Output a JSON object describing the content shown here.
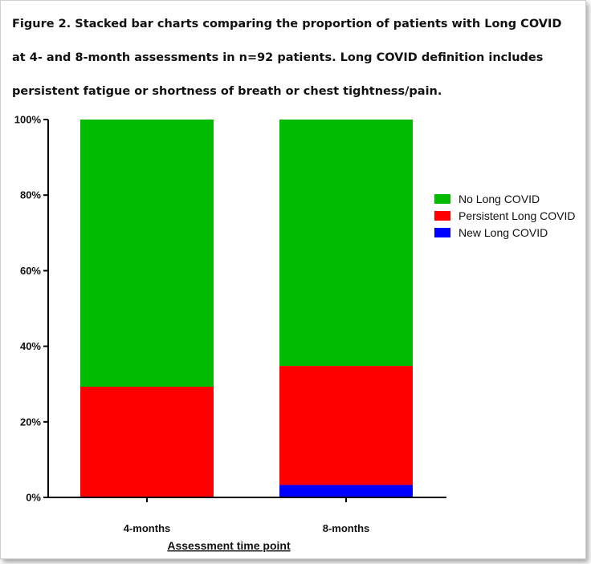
{
  "figure": {
    "caption": "Figure 2. Stacked bar charts comparing the proportion of patients with Long COVID at 4- and 8-month assessments in n=92 patients. Long COVID definition includes persistent fatigue or shortness of breath or chest tightness/pain."
  },
  "chart_data": {
    "type": "bar",
    "stacked": true,
    "categories": [
      "4-months",
      "8-months"
    ],
    "series": [
      {
        "name": "New Long COVID",
        "color": "#0000ff",
        "values": [
          0,
          3.3
        ]
      },
      {
        "name": "Persistent Long COVID",
        "color": "#ff0000",
        "values": [
          29.3,
          31.5
        ]
      },
      {
        "name": "No Long COVID",
        "color": "#00bb00",
        "values": [
          70.7,
          65.2
        ]
      }
    ],
    "legend_order": [
      "No Long COVID",
      "Persistent Long COVID",
      "New Long COVID"
    ],
    "xlabel": "Assessment time point",
    "ylabel": "",
    "ylim": [
      0,
      100
    ],
    "yticks": [
      0,
      20,
      40,
      60,
      80,
      100
    ],
    "ytick_labels": [
      "0%",
      "20%",
      "40%",
      "60%",
      "80%",
      "100%"
    ],
    "grid": false,
    "legend_position": "right"
  }
}
